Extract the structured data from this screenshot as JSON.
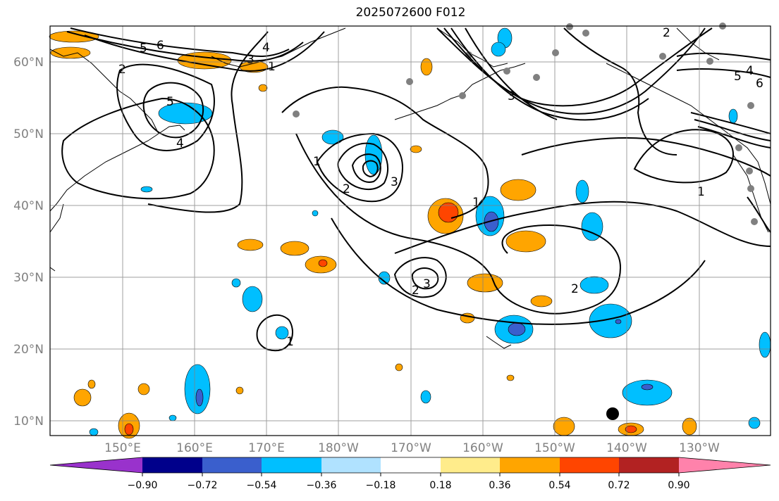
{
  "title": "2025072600 F012",
  "map": {
    "lat_labels": [
      "60°N",
      "50°N",
      "40°N",
      "30°N",
      "20°N",
      "10°N"
    ],
    "lon_labels": [
      "150°E",
      "160°E",
      "170°E",
      "180°W",
      "170°W",
      "160°W",
      "150°W",
      "140°W",
      "130°W"
    ],
    "contour_labels": [
      "6",
      "5",
      "4",
      "3",
      "2",
      "1",
      "5",
      "4",
      "3",
      "2",
      "1",
      "3",
      "2",
      "1",
      "2",
      "1",
      "1",
      "2",
      "3",
      "4",
      "5",
      "6"
    ]
  },
  "colorbar": {
    "ticks": [
      "−0.90",
      "−0.72",
      "−0.54",
      "−0.36",
      "−0.18",
      "0.18",
      "0.36",
      "0.54",
      "0.72",
      "0.90"
    ],
    "colors": [
      "#9932cc",
      "#00008b",
      "#3a5fcd",
      "#00bfff",
      "#b0e2ff",
      "#ffffff",
      "#ffec8b",
      "#ffa500",
      "#ff4500",
      "#b22222",
      "#ff82ab"
    ]
  }
}
